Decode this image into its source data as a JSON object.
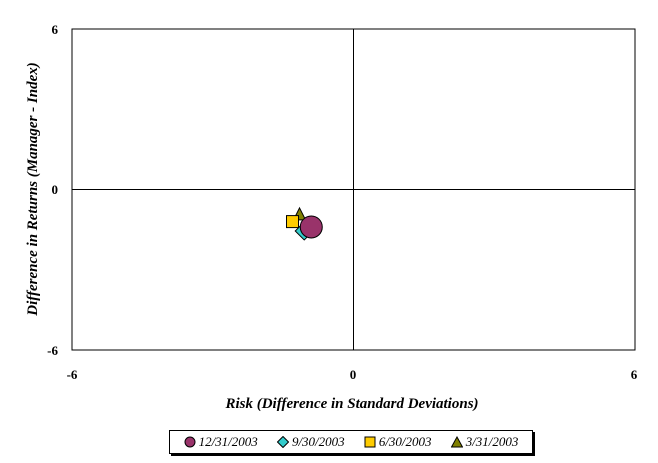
{
  "chart_data": {
    "type": "scatter",
    "xlabel": "Risk (Difference in Standard Deviations)",
    "ylabel": "Difference in Returns (Manager - Index)",
    "xlim": [
      -6,
      6
    ],
    "ylim": [
      -6,
      6
    ],
    "x_ticks": [
      "-6",
      "0",
      "6"
    ],
    "y_ticks": [
      "6",
      "0",
      "-6"
    ],
    "grid": false,
    "legend_position": "bottom",
    "series": [
      {
        "name": "12/31/2003",
        "marker": "circle",
        "color": "#99336A",
        "x": -0.9,
        "y": -1.4
      },
      {
        "name": "9/30/2003",
        "marker": "diamond",
        "color": "#33CCCC",
        "x": -1.05,
        "y": -1.55
      },
      {
        "name": "6/30/2003",
        "marker": "square",
        "color": "#FFCC00",
        "x": -1.3,
        "y": -1.2
      },
      {
        "name": "3/31/2003",
        "marker": "triangle",
        "color": "#808000",
        "x": -1.15,
        "y": -0.95
      }
    ]
  }
}
